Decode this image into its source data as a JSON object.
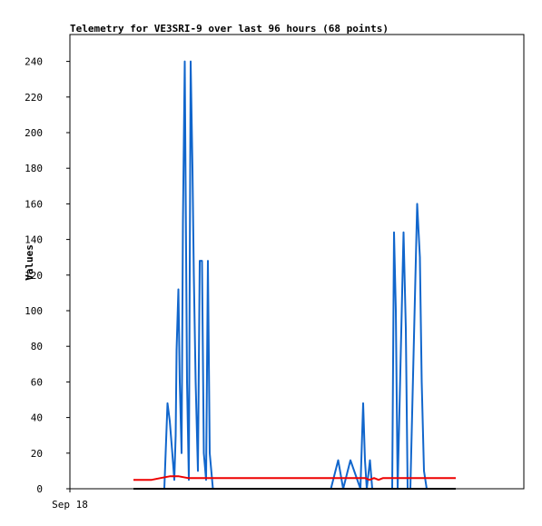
{
  "chart_data": {
    "type": "line",
    "title": "Telemetry for VE3SRI-9 over last 96 hours (68 points)",
    "xlabel": "",
    "ylabel": "Values",
    "x_tick_labels": [
      {
        "t": 0,
        "label": "Sep 18"
      }
    ],
    "xlim": [
      0,
      100
    ],
    "ylim": [
      0,
      250
    ],
    "y_ticks": [
      0,
      20,
      40,
      60,
      80,
      100,
      120,
      140,
      160,
      180,
      200,
      220,
      240
    ],
    "grid": false,
    "legend": "none",
    "series": [
      {
        "color": "#1166cc",
        "x": [
          20.8,
          21.5,
          22.0,
          22.5,
          23.0,
          23.3,
          23.5,
          23.9,
          24.2,
          24.6,
          24.9,
          25.3,
          25.8,
          26.2,
          26.6,
          27.0,
          27.3,
          27.7,
          28.2,
          28.6,
          29.1,
          29.5,
          30.0,
          30.4,
          30.8,
          31.5,
          32.5,
          33.2,
          33.8,
          34.2,
          34.5,
          34.9,
          35.4,
          57.5,
          59.1,
          60.2,
          61.8,
          64.0,
          64.6,
          65.0,
          65.4,
          66.1,
          66.6,
          67.0,
          71.0,
          71.4,
          71.8,
          72.2,
          73.5,
          74.0,
          74.4,
          75.0,
          76.5,
          77.1,
          77.5,
          78.0,
          78.6,
          79.0,
          79.8
        ],
        "y": [
          0,
          48,
          38,
          22,
          5,
          30,
          78,
          112,
          60,
          20,
          150,
          240,
          60,
          5,
          240,
          180,
          120,
          60,
          10,
          128,
          128,
          20,
          5,
          128,
          20,
          0,
          0,
          0,
          0,
          0,
          0,
          0,
          0,
          0,
          16,
          0,
          16,
          0,
          48,
          16,
          0,
          16,
          0,
          0,
          0,
          144,
          100,
          0,
          144,
          90,
          0,
          0,
          160,
          130,
          60,
          10,
          0,
          0,
          0
        ]
      },
      {
        "color": "#ee0000",
        "x": [
          14.0,
          18.0,
          20.0,
          22.0,
          24.0,
          26.0,
          28.0,
          30.0,
          35.0,
          60.0,
          65.0,
          66.0,
          67.0,
          68.0,
          69.0,
          70.0,
          75.0,
          80.0,
          85.0
        ],
        "y": [
          5,
          5,
          6,
          7,
          7,
          6,
          6,
          6,
          6,
          6,
          6,
          5,
          6,
          5,
          6,
          6,
          6,
          6,
          6
        ]
      },
      {
        "color": "#000000",
        "x": [
          14.0,
          85.0
        ],
        "y": [
          0,
          0
        ]
      }
    ]
  }
}
